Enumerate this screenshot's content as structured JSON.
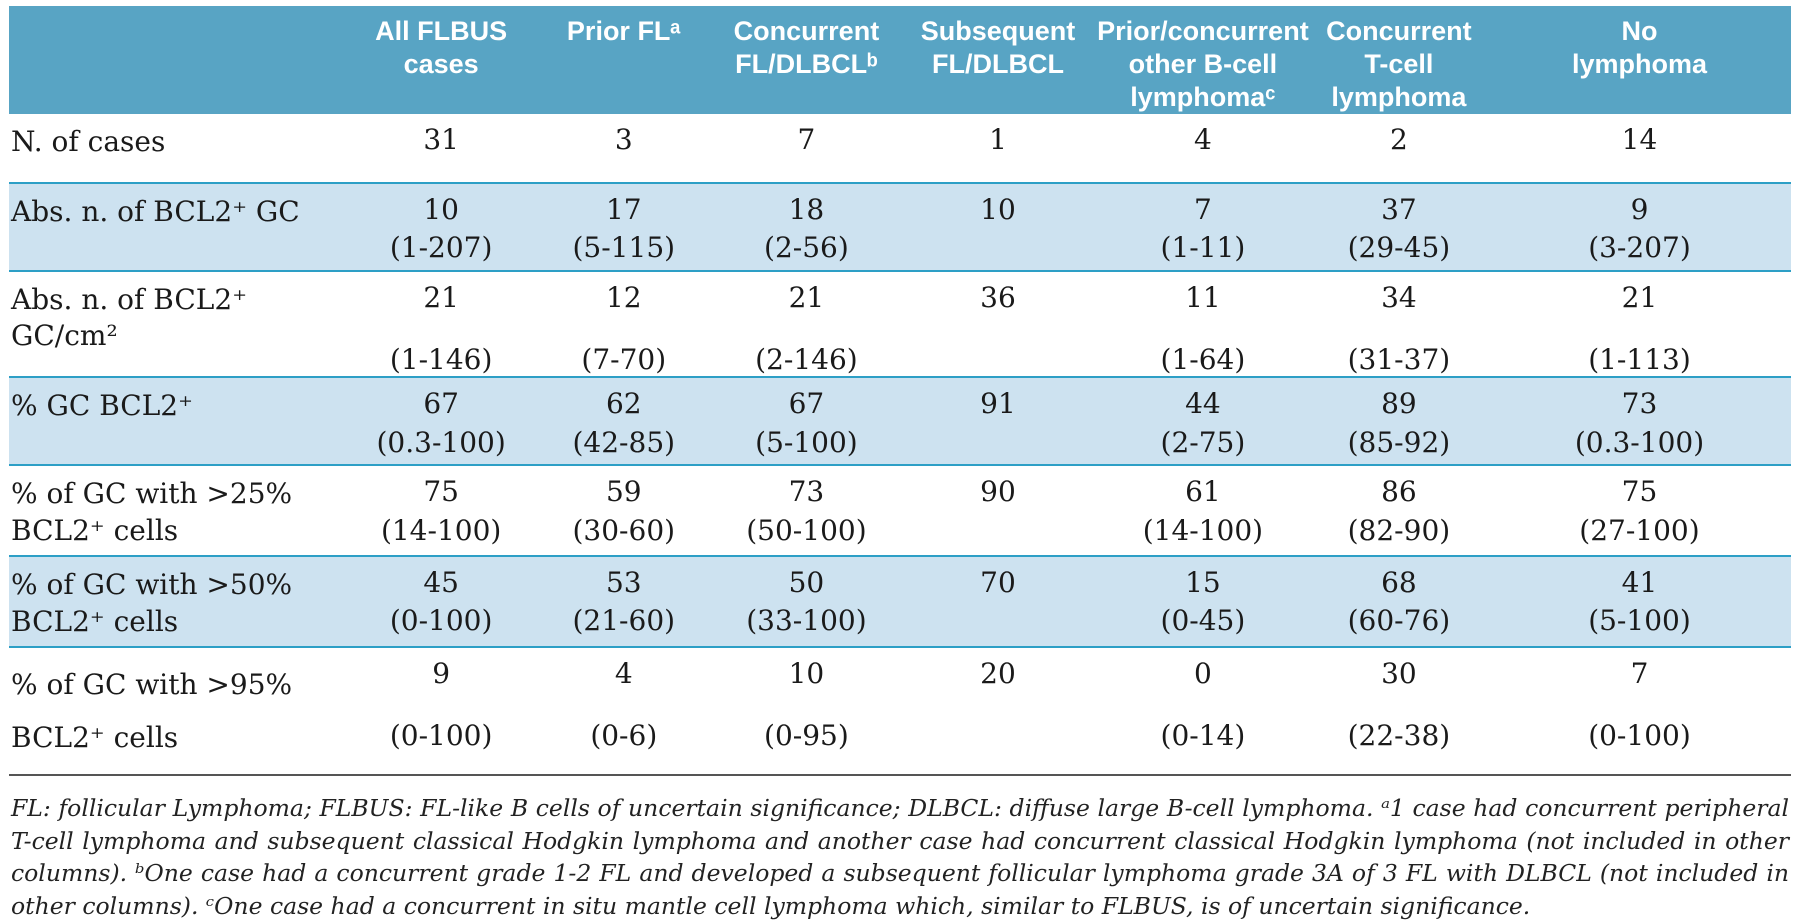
{
  "colors": {
    "header_bg": "#58a4c4",
    "shaded_row_bg": "#cde2f0",
    "separator_line": "#2d9fc6",
    "bottom_rule": "#555555"
  },
  "table": {
    "columns": [
      "All FLBUS\ncases",
      "Prior FLᵃ",
      "Concurrent\nFL/DLBCLᵇ",
      "Subsequent\nFL/DLBCL",
      "Prior/concurrent\nother B-cell\nlymphomaᶜ",
      "Concurrent\nT-cell\nlymphoma",
      "No\nlymphoma"
    ],
    "rows": [
      {
        "label": "N. of cases",
        "shaded": false,
        "values": [
          "31",
          "3",
          "7",
          "1",
          "4",
          "2",
          "14"
        ],
        "ranges": [
          "",
          "",
          "",
          "",
          "",
          "",
          ""
        ]
      },
      {
        "label": "Abs. n. of BCL2⁺ GC",
        "shaded": true,
        "values": [
          "10",
          "17",
          "18",
          "10",
          "7",
          "37",
          "9"
        ],
        "ranges": [
          "(1-207)",
          "(5-115)",
          "(2-56)",
          "",
          "(1-11)",
          "(29-45)",
          "(3-207)"
        ]
      },
      {
        "label": "Abs. n. of BCL2⁺ GC/cm²",
        "shaded": false,
        "values": [
          "21",
          "12",
          "21",
          "36",
          "11",
          "34",
          "21"
        ],
        "ranges": [
          "(1-146)",
          "(7-70)",
          "(2-146)",
          "",
          "(1-64)",
          "(31-37)",
          "(1-113)"
        ]
      },
      {
        "label": "% GC BCL2⁺",
        "shaded": true,
        "values": [
          "67",
          "62",
          "67",
          "91",
          "44",
          "89",
          "73"
        ],
        "ranges": [
          "(0.3-100)",
          "(42-85)",
          "(5-100)",
          "",
          "(2-75)",
          "(85-92)",
          "(0.3-100)"
        ]
      },
      {
        "label": "% of GC with >25%\nBCL2⁺ cells",
        "shaded": false,
        "values": [
          "75",
          "59",
          "73",
          "90",
          "61",
          "86",
          "75"
        ],
        "ranges": [
          "(14-100)",
          "(30-60)",
          "(50-100)",
          "",
          "(14-100)",
          "(82-90)",
          "(27-100)"
        ]
      },
      {
        "label": "% of GC with >50%\nBCL2⁺ cells",
        "shaded": true,
        "values": [
          "45",
          "53",
          "50",
          "70",
          "15",
          "68",
          "41"
        ],
        "ranges": [
          "(0-100)",
          "(21-60)",
          "(33-100)",
          "",
          "(0-45)",
          "(60-76)",
          "(5-100)"
        ]
      },
      {
        "label": "% of GC with >95%\nBCL2⁺ cells",
        "shaded": false,
        "values": [
          "9",
          "4",
          "10",
          "20",
          "0",
          "30",
          "7"
        ],
        "ranges": [
          "(0-100)",
          "(0-6)",
          "(0-95)",
          "",
          "(0-14)",
          "(22-38)",
          "(0-100)"
        ]
      }
    ]
  },
  "footnote": {
    "text": "FL: follicular Lymphoma; FLBUS: FL-like B cells of uncertain significance; DLBCL: diffuse large B-cell lymphoma. ᵃ1 case had concurrent peripheral T-cell lymphoma and subsequent classical Hodgkin lymphoma and another case had concurrent classical Hodgkin lymphoma (not included in other columns). ᵇOne case had a concurrent grade 1-2 FL and developed a subsequent follicular lymphoma grade 3A of 3 FL with DLBCL (not included in other columns). ᶜOne case had a concurrent in situ mantle cell lymphoma which, similar to FLBUS, is of uncertain significance."
  }
}
